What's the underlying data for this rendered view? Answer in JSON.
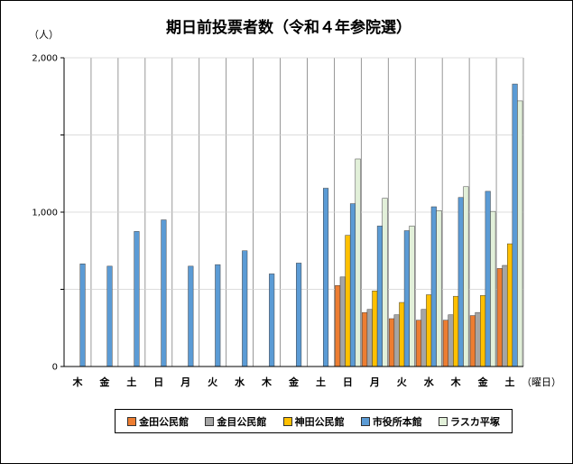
{
  "chart_data": {
    "type": "bar",
    "title": "期日前投票者数（令和４年参院選）",
    "ylabel": "（人）",
    "xlabel": "（曜日）",
    "ylim": [
      0,
      2000
    ],
    "yticks": [
      "0",
      "1,000",
      "2,000"
    ],
    "grid": true,
    "legend_position": "bottom",
    "categories": [
      "木",
      "金",
      "土",
      "日",
      "月",
      "火",
      "水",
      "木",
      "金",
      "土",
      "日",
      "月",
      "火",
      "水",
      "木",
      "金",
      "土"
    ],
    "series": [
      {
        "name": "金田公民館",
        "color": "#ED7D31",
        "values": [
          null,
          null,
          null,
          null,
          null,
          null,
          null,
          null,
          null,
          null,
          525,
          350,
          310,
          300,
          300,
          330,
          635
        ]
      },
      {
        "name": "金目公民館",
        "color": "#A5A5A5",
        "values": [
          null,
          null,
          null,
          null,
          null,
          null,
          null,
          null,
          null,
          null,
          580,
          370,
          335,
          370,
          335,
          350,
          655
        ]
      },
      {
        "name": "神田公民館",
        "color": "#FFC000",
        "values": [
          null,
          null,
          null,
          null,
          null,
          null,
          null,
          null,
          null,
          null,
          850,
          490,
          415,
          465,
          455,
          460,
          795
        ]
      },
      {
        "name": "市役所本館",
        "color": "#5B9BD5",
        "values": [
          665,
          650,
          875,
          950,
          650,
          660,
          750,
          600,
          670,
          1155,
          1055,
          910,
          880,
          1035,
          1095,
          1135,
          1830
        ]
      },
      {
        "name": "ラスカ平塚",
        "color": "#E2F0D9",
        "values": [
          null,
          null,
          null,
          null,
          null,
          null,
          null,
          null,
          null,
          null,
          1345,
          1090,
          910,
          1010,
          1165,
          1005,
          1720
        ]
      }
    ]
  }
}
